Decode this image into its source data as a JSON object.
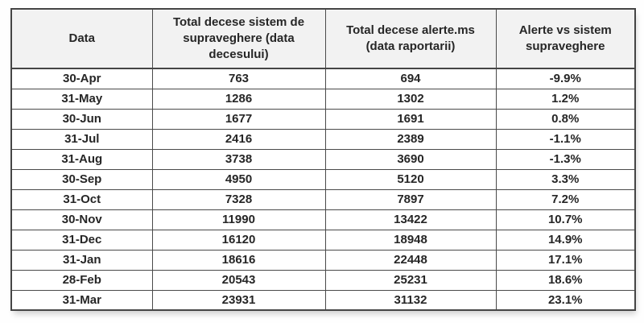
{
  "table": {
    "columns": [
      "Data",
      "Total decese sistem de supraveghere (data decesului)",
      "Total decese alerte.ms (data raportarii)",
      "Alerte vs sistem supraveghere"
    ],
    "rows": [
      [
        "30-Apr",
        "763",
        "694",
        "-9.9%"
      ],
      [
        "31-May",
        "1286",
        "1302",
        "1.2%"
      ],
      [
        "30-Jun",
        "1677",
        "1691",
        "0.8%"
      ],
      [
        "31-Jul",
        "2416",
        "2389",
        "-1.1%"
      ],
      [
        "31-Aug",
        "3738",
        "3690",
        "-1.3%"
      ],
      [
        "30-Sep",
        "4950",
        "5120",
        "3.3%"
      ],
      [
        "31-Oct",
        "7328",
        "7897",
        "7.2%"
      ],
      [
        "30-Nov",
        "11990",
        "13422",
        "10.7%"
      ],
      [
        "31-Dec",
        "16120",
        "18948",
        "14.9%"
      ],
      [
        "31-Jan",
        "18616",
        "22448",
        "17.1%"
      ],
      [
        "28-Feb",
        "20543",
        "25231",
        "18.6%"
      ],
      [
        "31-Mar",
        "23931",
        "31132",
        "23.1%"
      ]
    ]
  },
  "colors": {
    "header_bg": "#f2f2f2",
    "border": "#4a4a4a",
    "text": "#262626",
    "page_bg": "#fefefe"
  }
}
